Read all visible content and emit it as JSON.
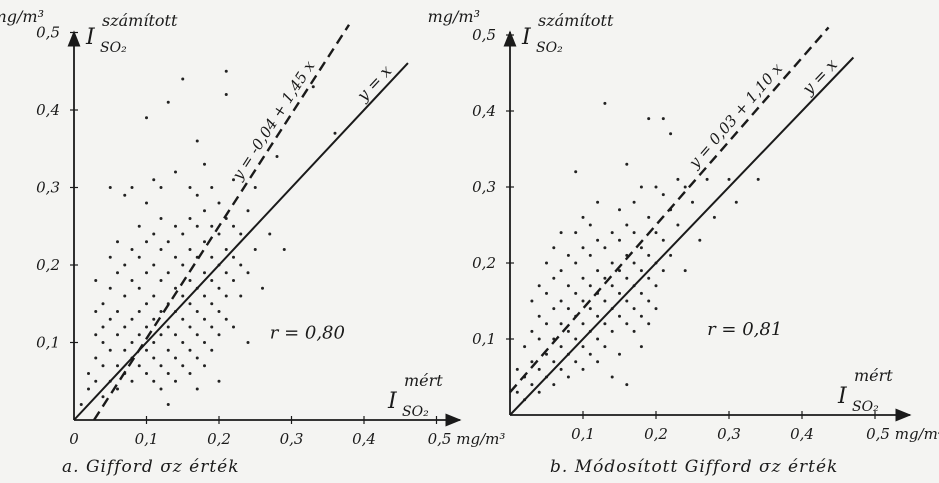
{
  "chart_data": [
    {
      "type": "scatter",
      "panel_caption": "a.  Gifford σz érték",
      "y_unit_label": "mg/m³",
      "y_symbol": "I",
      "y_sub": "SO₂",
      "y_sup": "számított",
      "x_symbol": "I",
      "x_sub": "SO₂",
      "x_sup": "mért",
      "x_ticks": [
        "0",
        "0,1",
        "0,2",
        "0,3",
        "0,4",
        "0,5 mg/m³"
      ],
      "y_ticks": [
        "0,1",
        "0,2",
        "0,3",
        "0,4",
        "0,5"
      ],
      "xlim": [
        0,
        0.5
      ],
      "ylim": [
        0,
        0.52
      ],
      "r_label": "r = 0,80",
      "identity_line": {
        "label": "y = x",
        "slope": 1,
        "intercept": 0
      },
      "regression_line": {
        "label": "y = -0,04 + 1,45 x",
        "slope": 1.45,
        "intercept": -0.04
      },
      "points": [
        [
          0.01,
          0.02
        ],
        [
          0.02,
          0.04
        ],
        [
          0.02,
          0.06
        ],
        [
          0.03,
          0.05
        ],
        [
          0.03,
          0.08
        ],
        [
          0.03,
          0.11
        ],
        [
          0.03,
          0.14
        ],
        [
          0.03,
          0.18
        ],
        [
          0.04,
          0.03
        ],
        [
          0.04,
          0.07
        ],
        [
          0.04,
          0.1
        ],
        [
          0.04,
          0.12
        ],
        [
          0.04,
          0.15
        ],
        [
          0.05,
          0.05
        ],
        [
          0.05,
          0.09
        ],
        [
          0.05,
          0.13
        ],
        [
          0.05,
          0.17
        ],
        [
          0.05,
          0.21
        ],
        [
          0.05,
          0.3
        ],
        [
          0.06,
          0.04
        ],
        [
          0.06,
          0.07
        ],
        [
          0.06,
          0.11
        ],
        [
          0.06,
          0.14
        ],
        [
          0.06,
          0.19
        ],
        [
          0.06,
          0.23
        ],
        [
          0.07,
          0.06
        ],
        [
          0.07,
          0.09
        ],
        [
          0.07,
          0.12
        ],
        [
          0.07,
          0.16
        ],
        [
          0.07,
          0.2
        ],
        [
          0.07,
          0.29
        ],
        [
          0.08,
          0.05
        ],
        [
          0.08,
          0.08
        ],
        [
          0.08,
          0.1
        ],
        [
          0.08,
          0.13
        ],
        [
          0.08,
          0.18
        ],
        [
          0.08,
          0.22
        ],
        [
          0.08,
          0.3
        ],
        [
          0.09,
          0.07
        ],
        [
          0.09,
          0.11
        ],
        [
          0.09,
          0.14
        ],
        [
          0.09,
          0.17
        ],
        [
          0.09,
          0.21
        ],
        [
          0.09,
          0.25
        ],
        [
          0.1,
          0.06
        ],
        [
          0.1,
          0.09
        ],
        [
          0.1,
          0.12
        ],
        [
          0.1,
          0.15
        ],
        [
          0.1,
          0.19
        ],
        [
          0.1,
          0.23
        ],
        [
          0.1,
          0.28
        ],
        [
          0.1,
          0.39
        ],
        [
          0.11,
          0.05
        ],
        [
          0.11,
          0.08
        ],
        [
          0.11,
          0.1
        ],
        [
          0.11,
          0.13
        ],
        [
          0.11,
          0.16
        ],
        [
          0.11,
          0.2
        ],
        [
          0.11,
          0.24
        ],
        [
          0.11,
          0.31
        ],
        [
          0.12,
          0.04
        ],
        [
          0.12,
          0.07
        ],
        [
          0.12,
          0.11
        ],
        [
          0.12,
          0.14
        ],
        [
          0.12,
          0.18
        ],
        [
          0.12,
          0.22
        ],
        [
          0.12,
          0.26
        ],
        [
          0.12,
          0.3
        ],
        [
          0.13,
          0.02
        ],
        [
          0.13,
          0.06
        ],
        [
          0.13,
          0.09
        ],
        [
          0.13,
          0.12
        ],
        [
          0.13,
          0.15
        ],
        [
          0.13,
          0.19
        ],
        [
          0.13,
          0.23
        ],
        [
          0.13,
          0.41
        ],
        [
          0.14,
          0.05
        ],
        [
          0.14,
          0.08
        ],
        [
          0.14,
          0.11
        ],
        [
          0.14,
          0.14
        ],
        [
          0.14,
          0.17
        ],
        [
          0.14,
          0.21
        ],
        [
          0.14,
          0.25
        ],
        [
          0.14,
          0.32
        ],
        [
          0.15,
          0.07
        ],
        [
          0.15,
          0.1
        ],
        [
          0.15,
          0.13
        ],
        [
          0.15,
          0.16
        ],
        [
          0.15,
          0.2
        ],
        [
          0.15,
          0.24
        ],
        [
          0.15,
          0.44
        ],
        [
          0.16,
          0.06
        ],
        [
          0.16,
          0.09
        ],
        [
          0.16,
          0.12
        ],
        [
          0.16,
          0.15
        ],
        [
          0.16,
          0.18
        ],
        [
          0.16,
          0.22
        ],
        [
          0.16,
          0.26
        ],
        [
          0.16,
          0.3
        ],
        [
          0.17,
          0.04
        ],
        [
          0.17,
          0.08
        ],
        [
          0.17,
          0.11
        ],
        [
          0.17,
          0.14
        ],
        [
          0.17,
          0.17
        ],
        [
          0.17,
          0.21
        ],
        [
          0.17,
          0.25
        ],
        [
          0.17,
          0.29
        ],
        [
          0.17,
          0.36
        ],
        [
          0.18,
          0.07
        ],
        [
          0.18,
          0.1
        ],
        [
          0.18,
          0.13
        ],
        [
          0.18,
          0.16
        ],
        [
          0.18,
          0.19
        ],
        [
          0.18,
          0.23
        ],
        [
          0.18,
          0.27
        ],
        [
          0.18,
          0.33
        ],
        [
          0.19,
          0.09
        ],
        [
          0.19,
          0.12
        ],
        [
          0.19,
          0.15
        ],
        [
          0.19,
          0.18
        ],
        [
          0.19,
          0.21
        ],
        [
          0.19,
          0.25
        ],
        [
          0.19,
          0.3
        ],
        [
          0.2,
          0.05
        ],
        [
          0.2,
          0.11
        ],
        [
          0.2,
          0.14
        ],
        [
          0.2,
          0.17
        ],
        [
          0.2,
          0.2
        ],
        [
          0.2,
          0.24
        ],
        [
          0.2,
          0.28
        ],
        [
          0.21,
          0.13
        ],
        [
          0.21,
          0.16
        ],
        [
          0.21,
          0.19
        ],
        [
          0.21,
          0.22
        ],
        [
          0.21,
          0.26
        ],
        [
          0.21,
          0.45
        ],
        [
          0.21,
          0.42
        ],
        [
          0.22,
          0.12
        ],
        [
          0.22,
          0.18
        ],
        [
          0.22,
          0.21
        ],
        [
          0.22,
          0.25
        ],
        [
          0.22,
          0.31
        ],
        [
          0.23,
          0.16
        ],
        [
          0.23,
          0.2
        ],
        [
          0.23,
          0.24
        ],
        [
          0.24,
          0.1
        ],
        [
          0.24,
          0.19
        ],
        [
          0.24,
          0.27
        ],
        [
          0.25,
          0.22
        ],
        [
          0.25,
          0.3
        ],
        [
          0.26,
          0.17
        ],
        [
          0.27,
          0.24
        ],
        [
          0.28,
          0.34
        ],
        [
          0.29,
          0.22
        ],
        [
          0.33,
          0.43
        ],
        [
          0.36,
          0.37
        ]
      ]
    },
    {
      "type": "scatter",
      "panel_caption": "b.  Módosított Gifford σz érték",
      "y_unit_label": "mg/m³",
      "y_symbol": "I",
      "y_sub": "SO₂",
      "y_sup": "számított",
      "x_symbol": "I",
      "x_sub": "SO₂",
      "x_sup": "mért",
      "x_ticks": [
        "0,1",
        "0,2",
        "0,3",
        "0,4",
        "0,5 mg/m³"
      ],
      "y_ticks": [
        "0,1",
        "0,2",
        "0,3",
        "0,4",
        "0,5"
      ],
      "xlim": [
        0,
        0.5
      ],
      "ylim": [
        0,
        0.52
      ],
      "r_label": "r = 0,81",
      "identity_line": {
        "label": "y = x",
        "slope": 1,
        "intercept": 0
      },
      "regression_line": {
        "label": "y = 0,03 + 1,10 x",
        "slope": 1.1,
        "intercept": 0.03
      },
      "points": [
        [
          0.01,
          0.03
        ],
        [
          0.01,
          0.06
        ],
        [
          0.02,
          0.02
        ],
        [
          0.02,
          0.05
        ],
        [
          0.02,
          0.09
        ],
        [
          0.03,
          0.04
        ],
        [
          0.03,
          0.07
        ],
        [
          0.03,
          0.11
        ],
        [
          0.03,
          0.15
        ],
        [
          0.04,
          0.03
        ],
        [
          0.04,
          0.06
        ],
        [
          0.04,
          0.1
        ],
        [
          0.04,
          0.13
        ],
        [
          0.04,
          0.17
        ],
        [
          0.05,
          0.05
        ],
        [
          0.05,
          0.08
        ],
        [
          0.05,
          0.12
        ],
        [
          0.05,
          0.16
        ],
        [
          0.05,
          0.2
        ],
        [
          0.06,
          0.04
        ],
        [
          0.06,
          0.07
        ],
        [
          0.06,
          0.1
        ],
        [
          0.06,
          0.14
        ],
        [
          0.06,
          0.18
        ],
        [
          0.06,
          0.22
        ],
        [
          0.07,
          0.06
        ],
        [
          0.07,
          0.09
        ],
        [
          0.07,
          0.12
        ],
        [
          0.07,
          0.15
        ],
        [
          0.07,
          0.19
        ],
        [
          0.07,
          0.24
        ],
        [
          0.08,
          0.05
        ],
        [
          0.08,
          0.08
        ],
        [
          0.08,
          0.11
        ],
        [
          0.08,
          0.14
        ],
        [
          0.08,
          0.17
        ],
        [
          0.08,
          0.21
        ],
        [
          0.09,
          0.07
        ],
        [
          0.09,
          0.1
        ],
        [
          0.09,
          0.13
        ],
        [
          0.09,
          0.16
        ],
        [
          0.09,
          0.2
        ],
        [
          0.09,
          0.24
        ],
        [
          0.09,
          0.32
        ],
        [
          0.1,
          0.06
        ],
        [
          0.1,
          0.09
        ],
        [
          0.1,
          0.12
        ],
        [
          0.1,
          0.15
        ],
        [
          0.1,
          0.18
        ],
        [
          0.1,
          0.22
        ],
        [
          0.1,
          0.26
        ],
        [
          0.11,
          0.08
        ],
        [
          0.11,
          0.11
        ],
        [
          0.11,
          0.14
        ],
        [
          0.11,
          0.17
        ],
        [
          0.11,
          0.21
        ],
        [
          0.11,
          0.25
        ],
        [
          0.12,
          0.07
        ],
        [
          0.12,
          0.1
        ],
        [
          0.12,
          0.13
        ],
        [
          0.12,
          0.16
        ],
        [
          0.12,
          0.19
        ],
        [
          0.12,
          0.23
        ],
        [
          0.12,
          0.28
        ],
        [
          0.13,
          0.09
        ],
        [
          0.13,
          0.12
        ],
        [
          0.13,
          0.15
        ],
        [
          0.13,
          0.18
        ],
        [
          0.13,
          0.22
        ],
        [
          0.13,
          0.41
        ],
        [
          0.14,
          0.05
        ],
        [
          0.14,
          0.11
        ],
        [
          0.14,
          0.14
        ],
        [
          0.14,
          0.17
        ],
        [
          0.14,
          0.2
        ],
        [
          0.14,
          0.24
        ],
        [
          0.15,
          0.08
        ],
        [
          0.15,
          0.13
        ],
        [
          0.15,
          0.16
        ],
        [
          0.15,
          0.19
        ],
        [
          0.15,
          0.23
        ],
        [
          0.15,
          0.27
        ],
        [
          0.16,
          0.04
        ],
        [
          0.16,
          0.12
        ],
        [
          0.16,
          0.15
        ],
        [
          0.16,
          0.18
        ],
        [
          0.16,
          0.21
        ],
        [
          0.16,
          0.25
        ],
        [
          0.16,
          0.33
        ],
        [
          0.17,
          0.11
        ],
        [
          0.17,
          0.14
        ],
        [
          0.17,
          0.17
        ],
        [
          0.17,
          0.2
        ],
        [
          0.17,
          0.24
        ],
        [
          0.17,
          0.28
        ],
        [
          0.18,
          0.09
        ],
        [
          0.18,
          0.13
        ],
        [
          0.18,
          0.16
        ],
        [
          0.18,
          0.19
        ],
        [
          0.18,
          0.22
        ],
        [
          0.18,
          0.3
        ],
        [
          0.19,
          0.12
        ],
        [
          0.19,
          0.15
        ],
        [
          0.19,
          0.18
        ],
        [
          0.19,
          0.21
        ],
        [
          0.19,
          0.26
        ],
        [
          0.19,
          0.39
        ],
        [
          0.2,
          0.14
        ],
        [
          0.2,
          0.17
        ],
        [
          0.2,
          0.2
        ],
        [
          0.2,
          0.24
        ],
        [
          0.2,
          0.3
        ],
        [
          0.21,
          0.19
        ],
        [
          0.21,
          0.23
        ],
        [
          0.21,
          0.29
        ],
        [
          0.21,
          0.39
        ],
        [
          0.22,
          0.21
        ],
        [
          0.22,
          0.27
        ],
        [
          0.22,
          0.37
        ],
        [
          0.23,
          0.25
        ],
        [
          0.23,
          0.31
        ],
        [
          0.24,
          0.19
        ],
        [
          0.24,
          0.3
        ],
        [
          0.25,
          0.28
        ],
        [
          0.26,
          0.23
        ],
        [
          0.27,
          0.31
        ],
        [
          0.28,
          0.26
        ],
        [
          0.3,
          0.31
        ],
        [
          0.31,
          0.28
        ],
        [
          0.34,
          0.31
        ]
      ]
    }
  ]
}
